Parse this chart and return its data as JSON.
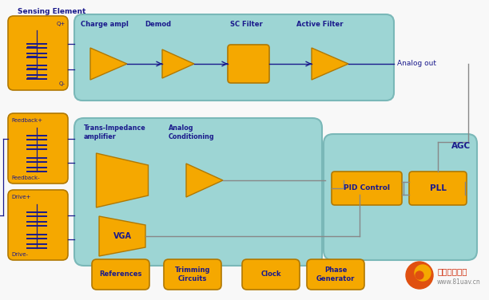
{
  "bg_color": "#f8f8f8",
  "cyan_bg": "#9dd5d4",
  "orange_fill": "#f5a800",
  "orange_border": "#b07800",
  "dark_blue_text": "#1a1a8c",
  "gray_line": "#888888",
  "title": "Sensing Element",
  "analog_out_text": "Analog out",
  "agc_text": "AGC",
  "top_row_labels": [
    "Charge ampl",
    "Demod",
    "SC Filter",
    "Active Filter"
  ],
  "bottom_labels_0": "Trans-Impedance\namplifier",
  "bottom_labels_1": "Analog\nConditioning",
  "vga_label": "VGA",
  "pid_label": "PID Control",
  "pll_label": "PLL",
  "feedback_plus": "Feedback+",
  "feedback_minus": "Feedback-",
  "drive_plus": "Drive+",
  "drive_minus": "Drive-",
  "q_plus": "Q+",
  "q_minus": "Q-",
  "bottom_boxes": [
    "References",
    "Trimming\nCircuits",
    "Clock",
    "Phase\nGenerator"
  ],
  "logo_text": "全球无人机网",
  "logo_url": "www.81uav.cn"
}
